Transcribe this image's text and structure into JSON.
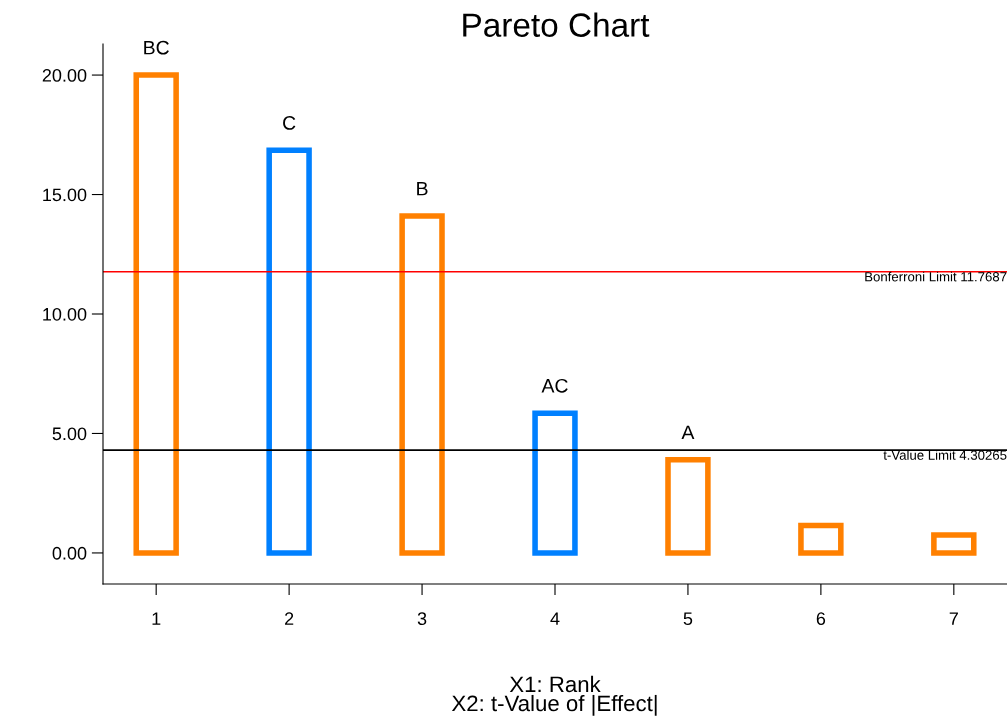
{
  "chart_data": {
    "type": "bar",
    "title": "Pareto Chart",
    "xlabel": "X1: Rank\nX2: t-Value of |Effect|",
    "x": [
      1,
      2,
      3,
      4,
      5,
      6,
      7
    ],
    "values": [
      20.0,
      16.85,
      14.1,
      5.85,
      3.9,
      1.15,
      0.75
    ],
    "colors": [
      "#ff8000",
      "#0080ff",
      "#ff8000",
      "#0080ff",
      "#ff8000",
      "#ff8000",
      "#ff8000"
    ],
    "xlim": [
      0.6,
      7.4
    ],
    "xticks": [
      1,
      2,
      3,
      4,
      5,
      6,
      7
    ],
    "ylim": [
      -1.3,
      21.3
    ],
    "yticks": [
      {
        "value": 0,
        "label": "0.00"
      },
      {
        "value": 5,
        "label": "5.00"
      },
      {
        "value": 10,
        "label": "10.00"
      },
      {
        "value": 15,
        "label": "15.00"
      },
      {
        "value": 20,
        "label": "20.00"
      }
    ],
    "ref_lines": [
      {
        "axis": "y",
        "value": 11.7687,
        "label": "Bonferroni Limit 11.7687",
        "color": "#ff0000"
      },
      {
        "axis": "y",
        "value": 4.30265,
        "label": "t-Value Limit 4.30265",
        "color": "#000000"
      }
    ],
    "annotations": [
      {
        "text": "BC",
        "x": 1,
        "y": 20.0
      },
      {
        "text": "C",
        "x": 2,
        "y": 16.85
      },
      {
        "text": "B",
        "x": 3,
        "y": 14.1
      },
      {
        "text": "AC",
        "x": 4,
        "y": 5.85
      },
      {
        "text": "A",
        "x": 5,
        "y": 3.9
      }
    ],
    "grid": false,
    "legend": false
  }
}
